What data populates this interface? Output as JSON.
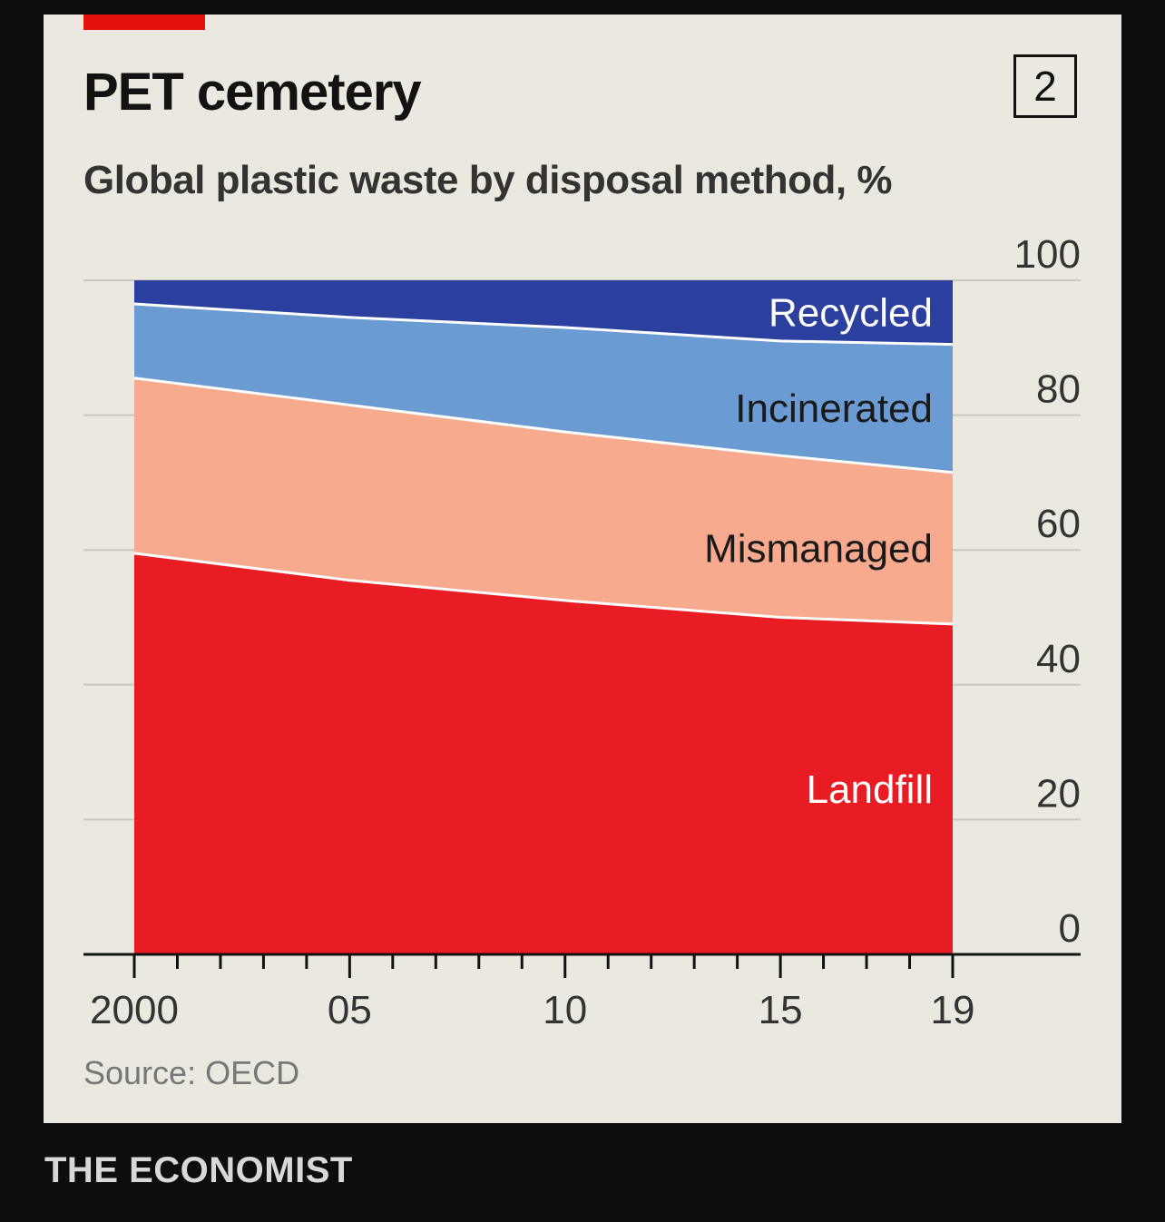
{
  "header": {
    "title": "PET cemetery",
    "subtitle": "Global plastic waste by disposal method, %",
    "chart_number": "2"
  },
  "source": "Source: OECD",
  "footer": "THE ECONOMIST",
  "colors": {
    "brand_red": "#e3120b",
    "recycled": "#2a3f9e",
    "incinerated": "#6a9bd3",
    "mismanaged": "#f7aa8e",
    "landfill": "#e91c24",
    "background": "#ebe9df"
  },
  "chart_data": {
    "type": "area",
    "stacked": true,
    "title": "PET cemetery",
    "subtitle": "Global plastic waste by disposal method, %",
    "x": [
      2000,
      2005,
      2010,
      2015,
      2019
    ],
    "x_tick_labels": [
      "2000",
      "05",
      "10",
      "15",
      "19"
    ],
    "xlim": [
      2000,
      2019
    ],
    "ylim": [
      0,
      100
    ],
    "y_ticks": [
      0,
      20,
      40,
      60,
      80,
      100
    ],
    "y_axis_position": "right",
    "grid": true,
    "series": [
      {
        "name": "Landfill",
        "values": [
          59.5,
          55.5,
          52.5,
          50,
          49
        ],
        "color": "#e91c24",
        "label_color": "#ffffff"
      },
      {
        "name": "Mismanaged",
        "values": [
          26,
          26,
          25,
          24,
          22.5
        ],
        "color": "#f7aa8e",
        "label_color": "#1a1a1a"
      },
      {
        "name": "Incinerated",
        "values": [
          11,
          13,
          15.5,
          17,
          19
        ],
        "color": "#6a9bd3",
        "label_color": "#1a1a1a"
      },
      {
        "name": "Recycled",
        "values": [
          3.5,
          5.5,
          7,
          9,
          9.5
        ],
        "color": "#2a3f9e",
        "label_color": "#ffffff"
      }
    ]
  }
}
